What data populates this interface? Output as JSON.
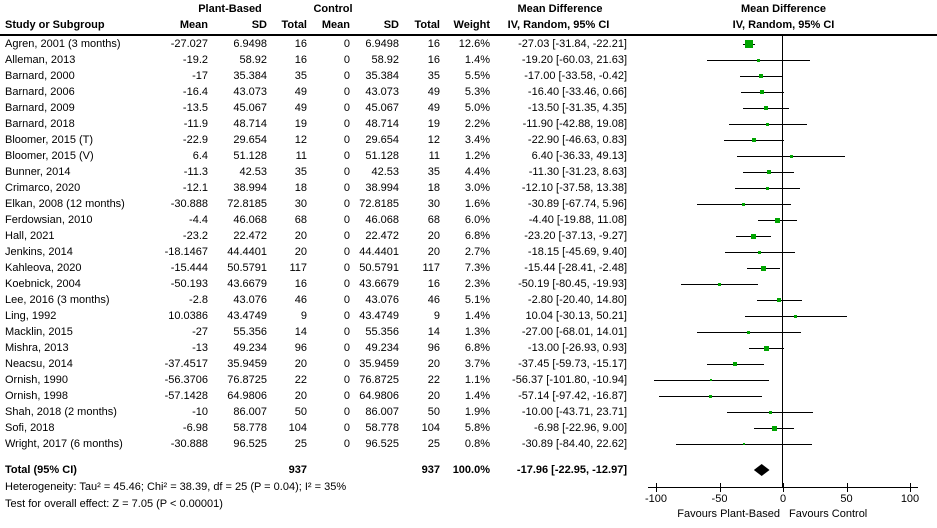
{
  "headers": {
    "study": "Study or Subgroup",
    "plant_group": "Plant-Based",
    "control_group": "Control",
    "md_group": "Mean Difference",
    "md_group_plot": "Mean Difference",
    "mean": "Mean",
    "sd": "SD",
    "total": "Total",
    "mean2": "Mean",
    "sd2": "SD",
    "total2": "Total",
    "weight": "Weight",
    "ci": "IV, Random, 95% CI",
    "ci_plot": "IV, Random, 95% CI"
  },
  "totals": {
    "label": "Total (95% CI)",
    "plant_total": "937",
    "control_total": "937",
    "weight": "100.0%",
    "ci_text": "-17.96 [-22.95, -12.97]"
  },
  "footnotes": {
    "heterogeneity": "Heterogeneity: Tau² = 45.46; Chi² = 38.39, df = 25 (P = 0.04); I² = 35%",
    "overall_effect": "Test for overall effect: Z = 7.05 (P < 0.00001)"
  },
  "chart_data": {
    "type": "forest",
    "title": "Mean Difference",
    "subtitle": "IV, Random, 95% CI",
    "xlim": [
      -100,
      100
    ],
    "x_ticks": [
      -100,
      -50,
      0,
      50,
      100
    ],
    "favours_left": "Favours Plant-Based",
    "favours_right": "Favours Control",
    "marker_color": "#00A400",
    "line_color": "#000000",
    "studies": [
      {
        "label": "Agren, 2001 (3 months)",
        "mean": "-27.027",
        "sd": "6.9498",
        "total": "16",
        "c_mean": "0",
        "c_sd": "6.9498",
        "c_total": "16",
        "weight": "12.6%",
        "ci_text": "-27.03 [-31.84, -22.21]",
        "est": -27.03,
        "lo": -31.84,
        "hi": -22.21
      },
      {
        "label": "Alleman, 2013",
        "mean": "-19.2",
        "sd": "58.92",
        "total": "16",
        "c_mean": "0",
        "c_sd": "58.92",
        "c_total": "16",
        "weight": "1.4%",
        "ci_text": "-19.20 [-60.03, 21.63]",
        "est": -19.2,
        "lo": -60.03,
        "hi": 21.63
      },
      {
        "label": "Barnard, 2000",
        "mean": "-17",
        "sd": "35.384",
        "total": "35",
        "c_mean": "0",
        "c_sd": "35.384",
        "c_total": "35",
        "weight": "5.5%",
        "ci_text": "-17.00 [-33.58, -0.42]",
        "est": -17.0,
        "lo": -33.58,
        "hi": -0.42
      },
      {
        "label": "Barnard, 2006",
        "mean": "-16.4",
        "sd": "43.073",
        "total": "49",
        "c_mean": "0",
        "c_sd": "43.073",
        "c_total": "49",
        "weight": "5.3%",
        "ci_text": "-16.40 [-33.46, 0.66]",
        "est": -16.4,
        "lo": -33.46,
        "hi": 0.66
      },
      {
        "label": "Barnard, 2009",
        "mean": "-13.5",
        "sd": "45.067",
        "total": "49",
        "c_mean": "0",
        "c_sd": "45.067",
        "c_total": "49",
        "weight": "5.0%",
        "ci_text": "-13.50 [-31.35, 4.35]",
        "est": -13.5,
        "lo": -31.35,
        "hi": 4.35
      },
      {
        "label": "Barnard, 2018",
        "mean": "-11.9",
        "sd": "48.714",
        "total": "19",
        "c_mean": "0",
        "c_sd": "48.714",
        "c_total": "19",
        "weight": "2.2%",
        "ci_text": "-11.90 [-42.88, 19.08]",
        "est": -11.9,
        "lo": -42.88,
        "hi": 19.08
      },
      {
        "label": "Bloomer, 2015 (T)",
        "mean": "-22.9",
        "sd": "29.654",
        "total": "12",
        "c_mean": "0",
        "c_sd": "29.654",
        "c_total": "12",
        "weight": "3.4%",
        "ci_text": "-22.90 [-46.63, 0.83]",
        "est": -22.9,
        "lo": -46.63,
        "hi": 0.83
      },
      {
        "label": "Bloomer, 2015 (V)",
        "mean": "6.4",
        "sd": "51.128",
        "total": "11",
        "c_mean": "0",
        "c_sd": "51.128",
        "c_total": "11",
        "weight": "1.2%",
        "ci_text": "6.40 [-36.33, 49.13]",
        "est": 6.4,
        "lo": -36.33,
        "hi": 49.13
      },
      {
        "label": "Bunner, 2014",
        "mean": "-11.3",
        "sd": "42.53",
        "total": "35",
        "c_mean": "0",
        "c_sd": "42.53",
        "c_total": "35",
        "weight": "4.4%",
        "ci_text": "-11.30 [-31.23, 8.63]",
        "est": -11.3,
        "lo": -31.23,
        "hi": 8.63
      },
      {
        "label": "Crimarco, 2020",
        "mean": "-12.1",
        "sd": "38.994",
        "total": "18",
        "c_mean": "0",
        "c_sd": "38.994",
        "c_total": "18",
        "weight": "3.0%",
        "ci_text": "-12.10 [-37.58, 13.38]",
        "est": -12.1,
        "lo": -37.58,
        "hi": 13.38
      },
      {
        "label": "Elkan, 2008 (12 months)",
        "mean": "-30.888",
        "sd": "72.8185",
        "total": "30",
        "c_mean": "0",
        "c_sd": "72.8185",
        "c_total": "30",
        "weight": "1.6%",
        "ci_text": "-30.89 [-67.74, 5.96]",
        "est": -30.89,
        "lo": -67.74,
        "hi": 5.96
      },
      {
        "label": "Ferdowsian, 2010",
        "mean": "-4.4",
        "sd": "46.068",
        "total": "68",
        "c_mean": "0",
        "c_sd": "46.068",
        "c_total": "68",
        "weight": "6.0%",
        "ci_text": "-4.40 [-19.88, 11.08]",
        "est": -4.4,
        "lo": -19.88,
        "hi": 11.08
      },
      {
        "label": "Hall, 2021",
        "mean": "-23.2",
        "sd": "22.472",
        "total": "20",
        "c_mean": "0",
        "c_sd": "22.472",
        "c_total": "20",
        "weight": "6.8%",
        "ci_text": "-23.20 [-37.13, -9.27]",
        "est": -23.2,
        "lo": -37.13,
        "hi": -9.27
      },
      {
        "label": "Jenkins, 2014",
        "mean": "-18.1467",
        "sd": "44.4401",
        "total": "20",
        "c_mean": "0",
        "c_sd": "44.4401",
        "c_total": "20",
        "weight": "2.7%",
        "ci_text": "-18.15 [-45.69, 9.40]",
        "est": -18.15,
        "lo": -45.69,
        "hi": 9.4
      },
      {
        "label": "Kahleova, 2020",
        "mean": "-15.444",
        "sd": "50.5791",
        "total": "117",
        "c_mean": "0",
        "c_sd": "50.5791",
        "c_total": "117",
        "weight": "7.3%",
        "ci_text": "-15.44 [-28.41, -2.48]",
        "est": -15.44,
        "lo": -28.41,
        "hi": -2.48
      },
      {
        "label": "Koebnick, 2004",
        "mean": "-50.193",
        "sd": "43.6679",
        "total": "16",
        "c_mean": "0",
        "c_sd": "43.6679",
        "c_total": "16",
        "weight": "2.3%",
        "ci_text": "-50.19 [-80.45, -19.93]",
        "est": -50.19,
        "lo": -80.45,
        "hi": -19.93
      },
      {
        "label": "Lee, 2016 (3 months)",
        "mean": "-2.8",
        "sd": "43.076",
        "total": "46",
        "c_mean": "0",
        "c_sd": "43.076",
        "c_total": "46",
        "weight": "5.1%",
        "ci_text": "-2.80 [-20.40, 14.80]",
        "est": -2.8,
        "lo": -20.4,
        "hi": 14.8
      },
      {
        "label": "Ling, 1992",
        "mean": "10.0386",
        "sd": "43.4749",
        "total": "9",
        "c_mean": "0",
        "c_sd": "43.4749",
        "c_total": "9",
        "weight": "1.4%",
        "ci_text": "10.04 [-30.13, 50.21]",
        "est": 10.04,
        "lo": -30.13,
        "hi": 50.21
      },
      {
        "label": "Macklin, 2015",
        "mean": "-27",
        "sd": "55.356",
        "total": "14",
        "c_mean": "0",
        "c_sd": "55.356",
        "c_total": "14",
        "weight": "1.3%",
        "ci_text": "-27.00 [-68.01, 14.01]",
        "est": -27.0,
        "lo": -68.01,
        "hi": 14.01
      },
      {
        "label": "Mishra, 2013",
        "mean": "-13",
        "sd": "49.234",
        "total": "96",
        "c_mean": "0",
        "c_sd": "49.234",
        "c_total": "96",
        "weight": "6.8%",
        "ci_text": "-13.00 [-26.93, 0.93]",
        "est": -13.0,
        "lo": -26.93,
        "hi": 0.93
      },
      {
        "label": "Neacsu, 2014",
        "mean": "-37.4517",
        "sd": "35.9459",
        "total": "20",
        "c_mean": "0",
        "c_sd": "35.9459",
        "c_total": "20",
        "weight": "3.7%",
        "ci_text": "-37.45 [-59.73, -15.17]",
        "est": -37.45,
        "lo": -59.73,
        "hi": -15.17
      },
      {
        "label": "Ornish, 1990",
        "mean": "-56.3706",
        "sd": "76.8725",
        "total": "22",
        "c_mean": "0",
        "c_sd": "76.8725",
        "c_total": "22",
        "weight": "1.1%",
        "ci_text": "-56.37 [-101.80, -10.94]",
        "est": -56.37,
        "lo": -101.8,
        "hi": -10.94
      },
      {
        "label": "Ornish, 1998",
        "mean": "-57.1428",
        "sd": "64.9806",
        "total": "20",
        "c_mean": "0",
        "c_sd": "64.9806",
        "c_total": "20",
        "weight": "1.4%",
        "ci_text": "-57.14 [-97.42, -16.87]",
        "est": -57.14,
        "lo": -97.42,
        "hi": -16.87
      },
      {
        "label": "Shah, 2018 (2 months)",
        "mean": "-10",
        "sd": "86.007",
        "total": "50",
        "c_mean": "0",
        "c_sd": "86.007",
        "c_total": "50",
        "weight": "1.9%",
        "ci_text": "-10.00 [-43.71, 23.71]",
        "est": -10.0,
        "lo": -43.71,
        "hi": 23.71
      },
      {
        "label": "Sofi, 2018",
        "mean": "-6.98",
        "sd": "58.778",
        "total": "104",
        "c_mean": "0",
        "c_sd": "58.778",
        "c_total": "104",
        "weight": "5.8%",
        "ci_text": "-6.98 [-22.96, 9.00]",
        "est": -6.98,
        "lo": -22.96,
        "hi": 9.0
      },
      {
        "label": "Wright, 2017 (6 months)",
        "mean": "-30.888",
        "sd": "96.525",
        "total": "25",
        "c_mean": "0",
        "c_sd": "96.525",
        "c_total": "25",
        "weight": "0.8%",
        "ci_text": "-30.89 [-84.40, 22.62]",
        "est": -30.89,
        "lo": -84.4,
        "hi": 22.62
      }
    ],
    "total": {
      "est": -17.96,
      "lo": -22.95,
      "hi": -12.97
    }
  }
}
